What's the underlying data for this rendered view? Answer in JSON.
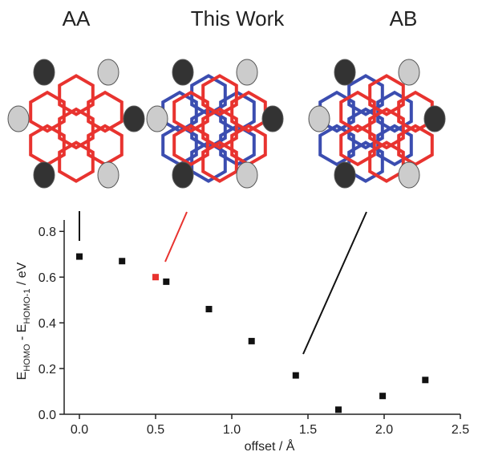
{
  "chart_data": {
    "type": "scatter",
    "panel_labels": [
      "AA",
      "This Work",
      "AB"
    ],
    "xlabel": "offset / Å",
    "ylabel_parts": [
      "E",
      "HOMO",
      " - E",
      "HOMO-1",
      " / eV"
    ],
    "x": [
      0,
      0.28,
      0.5,
      0.57,
      0.85,
      1.13,
      1.42,
      1.7,
      1.99,
      2.27
    ],
    "values": [
      0.69,
      0.67,
      0.6,
      0.58,
      0.46,
      0.32,
      0.17,
      0.02,
      0.08,
      0.15
    ],
    "point_colors": [
      "#111111",
      "#111111",
      "#e8332f",
      "#111111",
      "#111111",
      "#111111",
      "#111111",
      "#111111",
      "#111111",
      "#111111"
    ],
    "xlim": [
      -0.1,
      2.5
    ],
    "xticks": [
      {
        "value": 0,
        "label": "0.0"
      },
      0.5,
      {
        "value": 1,
        "label": "1.0"
      },
      1.5,
      {
        "value": 2,
        "label": "2.0"
      },
      2.5
    ],
    "ylim": [
      0,
      0.85
    ],
    "yticks": [
      {
        "value": 0,
        "label": "0.0"
      },
      0.2,
      0.4,
      0.6,
      0.8
    ]
  }
}
